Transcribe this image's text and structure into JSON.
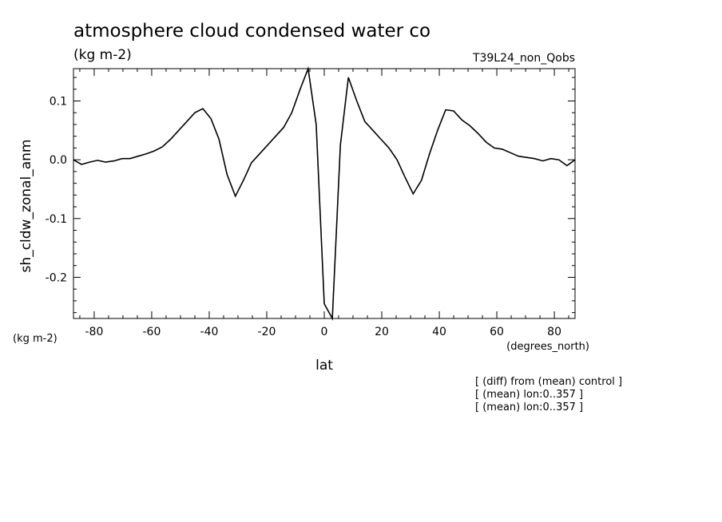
{
  "chart_data": {
    "type": "line",
    "title": "atmosphere cloud condensed water co",
    "subtitle": "(kg m-2)",
    "run_label": "T39L24_non_Qobs",
    "xlabel": "lat",
    "xunits": "(degrees_north)",
    "ylabel": "sh_cldw_zonal_anm",
    "yunits": "(kg m-2)",
    "xlim": [
      -87.2,
      87.2
    ],
    "ylim": [
      -0.27,
      0.155
    ],
    "xticks": [
      -80,
      -60,
      -40,
      -20,
      0,
      20,
      40,
      60,
      80
    ],
    "xtick_labels": [
      "-80",
      "-60",
      "-40",
      "-20",
      "0",
      "20",
      "40",
      "60",
      "80"
    ],
    "yticks": [
      -0.2,
      -0.1,
      0.0,
      0.1
    ],
    "ytick_labels": [
      "-0.2",
      "-0.1",
      "0.0",
      "0.1"
    ],
    "grid": false,
    "series": [
      {
        "x": [
          -87.2,
          -84.4,
          -81.6,
          -78.8,
          -76.0,
          -73.1,
          -70.3,
          -67.5,
          -64.7,
          -61.9,
          -59.1,
          -56.3,
          -53.4,
          -50.6,
          -47.8,
          -45.0,
          -42.2,
          -39.4,
          -36.6,
          -33.8,
          -30.9,
          -28.1,
          -25.3,
          -22.5,
          -19.7,
          -16.9,
          -14.1,
          -11.3,
          -8.4,
          -5.6,
          -2.8,
          0.0,
          2.8,
          5.6,
          8.4,
          11.3,
          14.1,
          16.9,
          19.7,
          22.5,
          25.3,
          28.1,
          30.9,
          33.8,
          36.6,
          39.4,
          42.2,
          45.0,
          47.8,
          50.6,
          53.4,
          56.3,
          59.1,
          61.9,
          64.7,
          67.5,
          70.3,
          73.1,
          76.0,
          78.8,
          81.6,
          84.4,
          87.2
        ],
        "y": [
          0.0,
          -0.008,
          -0.004,
          -0.001,
          -0.004,
          -0.002,
          0.002,
          0.002,
          0.006,
          0.01,
          0.015,
          0.022,
          0.035,
          0.05,
          0.065,
          0.08,
          0.087,
          0.07,
          0.035,
          -0.025,
          -0.062,
          -0.035,
          -0.005,
          0.01,
          0.025,
          0.04,
          0.055,
          0.08,
          0.12,
          0.155,
          0.06,
          -0.245,
          -0.27,
          0.025,
          0.14,
          0.1,
          0.065,
          0.05,
          0.035,
          0.02,
          0.0,
          -0.03,
          -0.058,
          -0.035,
          0.01,
          0.05,
          0.085,
          0.083,
          0.068,
          0.058,
          0.045,
          0.03,
          0.02,
          0.018,
          0.012,
          0.006,
          0.004,
          0.002,
          -0.002,
          0.002,
          0.0,
          -0.01,
          0.0
        ]
      }
    ],
    "notes": [
      "[ (diff) from (mean) control ]",
      "[ (mean) lon:0..357 ]",
      "[ (mean) lon:0..357 ]"
    ],
    "line_color": "#000000"
  }
}
